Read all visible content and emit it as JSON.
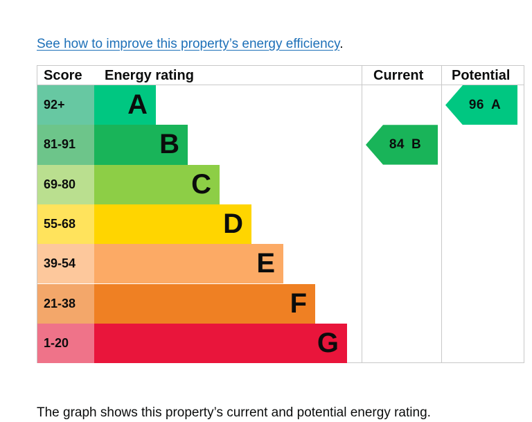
{
  "intro": {
    "link_text": "See how to improve this property’s energy efficiency",
    "trailing": "."
  },
  "outro": {
    "text": "The graph shows this property’s current and potential energy rating."
  },
  "chart_data": {
    "type": "bar",
    "title": "",
    "headers": {
      "score": "Score",
      "energy_rating": "Energy rating",
      "current": "Current",
      "potential": "Potential"
    },
    "bands": [
      {
        "letter": "A",
        "score": "92+",
        "color": "#00c781",
        "score_bg": "#67c8a2",
        "text": "#0b0c0c"
      },
      {
        "letter": "B",
        "score": "81-91",
        "color": "#19b459",
        "score_bg": "#6dc58a",
        "text": "#0b0c0c"
      },
      {
        "letter": "C",
        "score": "69-80",
        "color": "#8dce46",
        "score_bg": "#badf8f",
        "text": "#0b0c0c"
      },
      {
        "letter": "D",
        "score": "55-68",
        "color": "#ffd500",
        "score_bg": "#ffe35c",
        "text": "#0b0c0c"
      },
      {
        "letter": "E",
        "score": "39-54",
        "color": "#fcaa65",
        "score_bg": "#fdc89c",
        "text": "#0b0c0c"
      },
      {
        "letter": "F",
        "score": "21-38",
        "color": "#ef8023",
        "score_bg": "#f3a76a",
        "text": "#0b0c0c"
      },
      {
        "letter": "G",
        "score": "1-20",
        "color": "#e9153b",
        "score_bg": "#ef7389",
        "text": "#0b0c0c"
      }
    ],
    "current": {
      "value": 84,
      "letter": "B",
      "color": "#19b459"
    },
    "potential": {
      "value": 96,
      "letter": "A",
      "color": "#00c781"
    }
  }
}
